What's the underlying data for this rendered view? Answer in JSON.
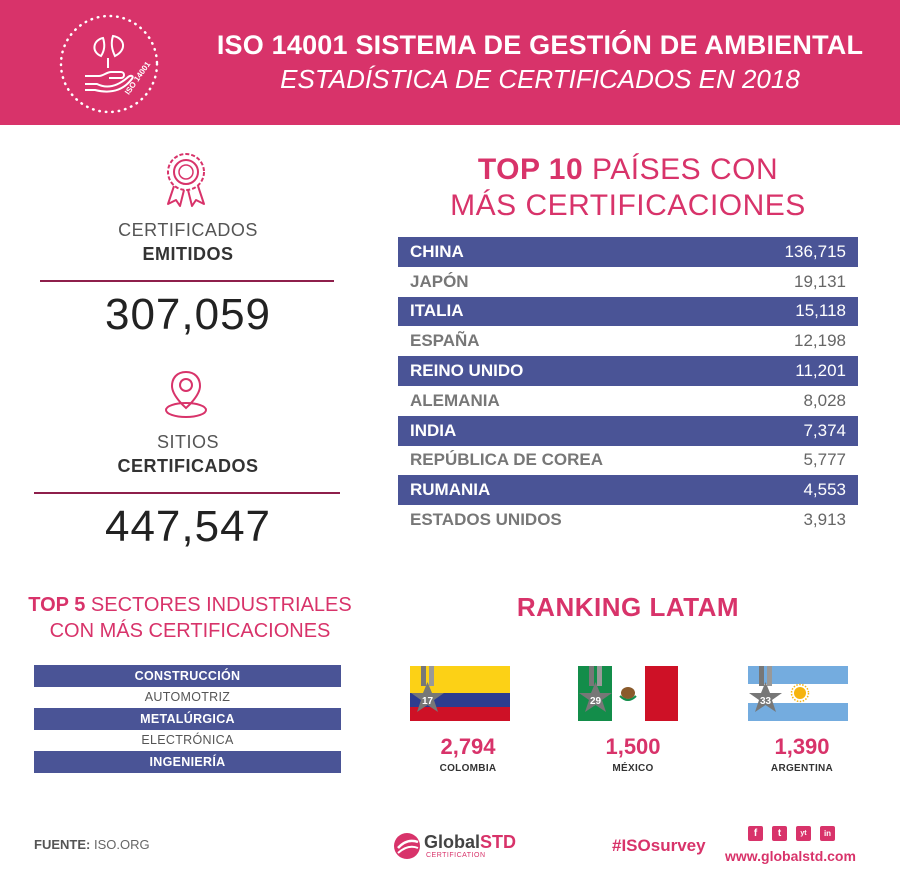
{
  "header": {
    "title": "ISO 14001 SISTEMA DE GESTIÓN DE AMBIENTAL",
    "subtitle": "ESTADÍSTICA DE CERTIFICADOS EN 2018",
    "badge_text": "ISO 14001"
  },
  "stats": {
    "certificates": {
      "label": "CERTIFICADOS",
      "label_bold": "EMITIDOS",
      "value": "307,059",
      "icon": "award-ribbon-icon"
    },
    "sites": {
      "label": "SITIOS",
      "label_bold": "CERTIFICADOS",
      "value": "447,547",
      "icon": "location-pin-icon"
    }
  },
  "top10": {
    "title_bold": "TOP 10",
    "title_rest": "PAÍSES CON",
    "title_line2": "MÁS CERTIFICACIONES",
    "rows": [
      {
        "name": "CHINA",
        "value": "136,715"
      },
      {
        "name": "JAPÓN",
        "value": "19,131"
      },
      {
        "name": "ITALIA",
        "value": "15,118"
      },
      {
        "name": "ESPAÑA",
        "value": "12,198"
      },
      {
        "name": "REINO UNIDO",
        "value": "11,201"
      },
      {
        "name": "ALEMANIA",
        "value": "8,028"
      },
      {
        "name": "INDIA",
        "value": "7,374"
      },
      {
        "name": "REPÚBLICA DE COREA",
        "value": "5,777"
      },
      {
        "name": "RUMANIA",
        "value": "4,553"
      },
      {
        "name": "ESTADOS UNIDOS",
        "value": "3,913"
      }
    ]
  },
  "top5": {
    "title_bold": "TOP 5",
    "title_rest": "SECTORES INDUSTRIALES",
    "title_line2": "CON MÁS CERTIFICACIONES",
    "sectors": [
      "CONSTRUCCIÓN",
      "AUTOMOTRIZ",
      "METALÚRGICA",
      "ELECTRÓNICA",
      "INGENIERÍA"
    ]
  },
  "latam": {
    "title": "RANKING LATAM",
    "countries": [
      {
        "rank": "17",
        "value": "2,794",
        "name": "COLOMBIA",
        "flag": "colombia-flag"
      },
      {
        "rank": "29",
        "value": "1,500",
        "name": "MÉXICO",
        "flag": "mexico-flag"
      },
      {
        "rank": "33",
        "value": "1,390",
        "name": "ARGENTINA",
        "flag": "argentina-flag"
      }
    ]
  },
  "footer": {
    "source_label": "FUENTE:",
    "source_value": "ISO.ORG",
    "logo_main": "Global",
    "logo_accent": "STD",
    "logo_sub": "CERTIFICATION",
    "hashtag": "#ISOsurvey",
    "website": "www.globalstd.com",
    "social": [
      "f",
      "t",
      "yt",
      "in"
    ]
  },
  "colors": {
    "brand_pink": "#d8336a",
    "navy": "#4a5496",
    "divider": "#8e1f4b"
  }
}
